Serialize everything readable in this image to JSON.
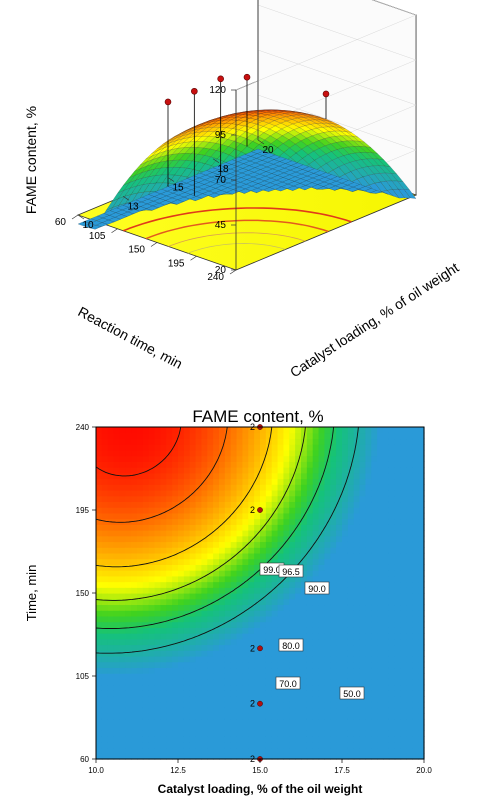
{
  "chart_data": [
    {
      "type": "surface",
      "zlabel": "FAME content, %",
      "xlabel": "Reaction time, min",
      "ylabel": "Catalyst loading, % of oil weight",
      "z_ticks": [
        "20",
        "45",
        "70",
        "95",
        "120"
      ],
      "x_ticks": [
        "240",
        "195",
        "150",
        "105",
        "60"
      ],
      "y_ticks": [
        "10",
        "13",
        "15",
        "18",
        "20"
      ],
      "zlim": [
        20,
        120
      ],
      "xlim": [
        60,
        240
      ],
      "ylim": [
        10,
        20
      ],
      "colormap": [
        "#2a9ad8",
        "#15c27a",
        "#3fd21f",
        "#ffff00",
        "#ff8c00",
        "#ff0000"
      ],
      "floor_color": "#ffff00",
      "design_points": [
        {
          "time": 240,
          "catalyst": 15,
          "fame": 97
        },
        {
          "time": 150,
          "catalyst": 15,
          "fame": 91
        },
        {
          "time": 120,
          "catalyst": 15,
          "fame": 85
        },
        {
          "time": 90,
          "catalyst": 15,
          "fame": 73
        },
        {
          "time": 60,
          "catalyst": 15,
          "fame": 62
        }
      ]
    },
    {
      "type": "contour",
      "title": "FAME content, %",
      "xlabel": "Catalyst loading, % of the oil weight",
      "ylabel": "Time, min",
      "x_ticks": [
        "10.0",
        "12.5",
        "15.0",
        "17.5",
        "20.0"
      ],
      "y_ticks": [
        "60",
        "105",
        "150",
        "195",
        "240"
      ],
      "xlim": [
        10,
        20
      ],
      "ylim": [
        60,
        240
      ],
      "contour_labels": [
        "99.0",
        "96.5",
        "90.0",
        "80.0",
        "70.0",
        "50.0"
      ],
      "design_points": [
        {
          "catalyst": 15,
          "time": 240,
          "label": "2"
        },
        {
          "catalyst": 15,
          "time": 195,
          "label": "2"
        },
        {
          "catalyst": 15,
          "time": 120,
          "label": "2"
        },
        {
          "catalyst": 15,
          "time": 90,
          "label": "2"
        },
        {
          "catalyst": 15,
          "time": 60,
          "label": "2"
        }
      ]
    }
  ]
}
